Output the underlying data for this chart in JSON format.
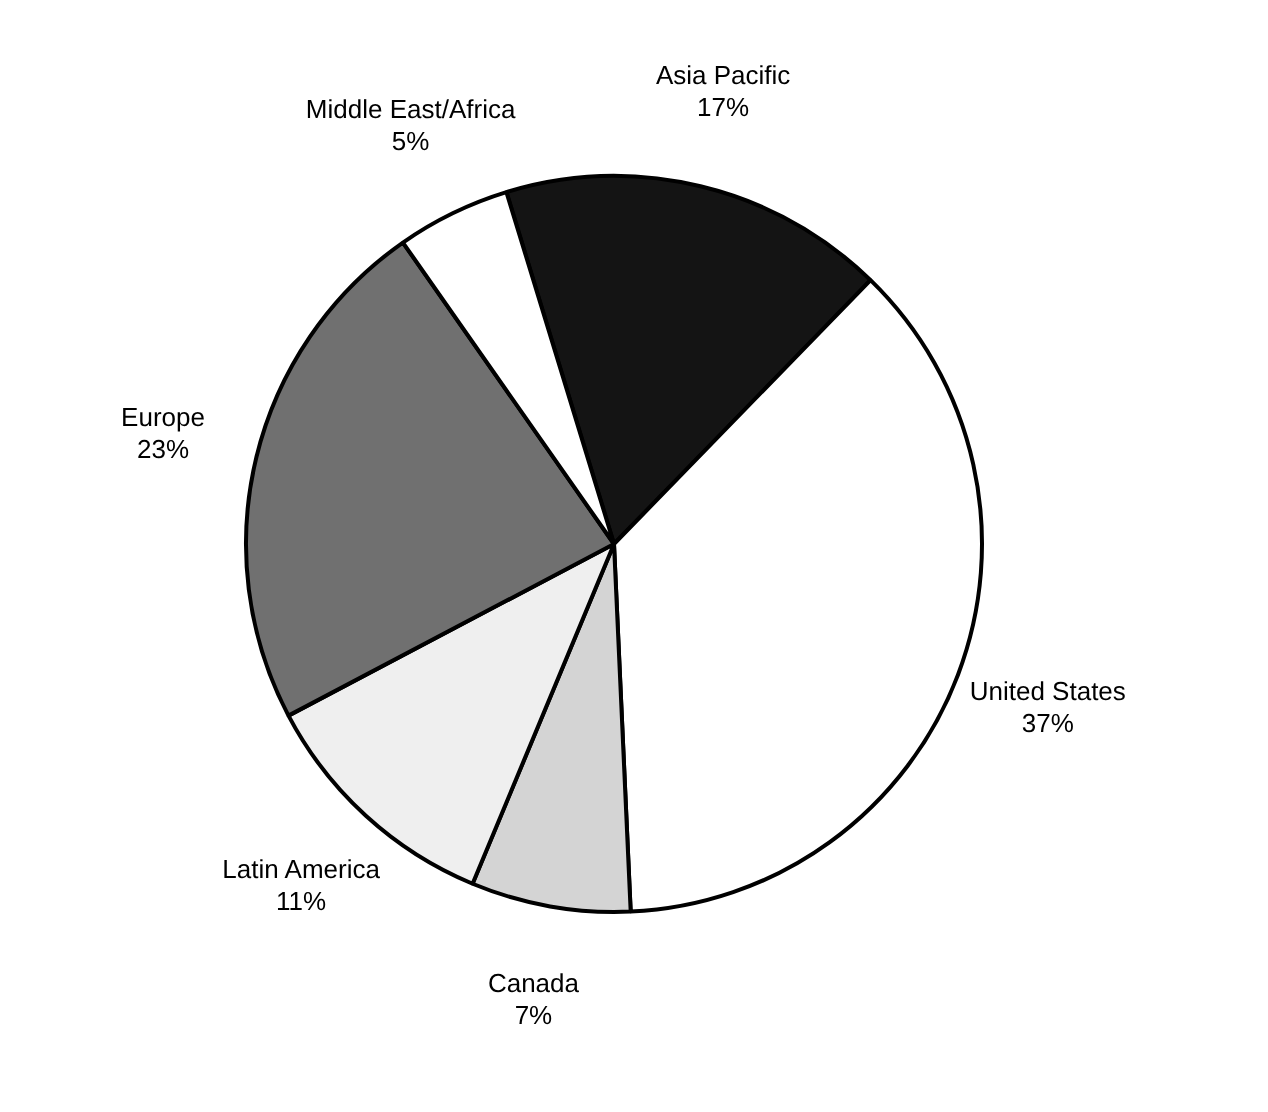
{
  "chart_data": {
    "type": "pie",
    "categories": [
      "Asia Pacific",
      "United States",
      "Canada",
      "Latin America",
      "Europe",
      "Middle East/Africa"
    ],
    "values": [
      17,
      37,
      7,
      11,
      23,
      5
    ],
    "value_labels": [
      "17%",
      "37%",
      "7%",
      "11%",
      "23%",
      "5%"
    ],
    "colors": [
      "#141414",
      "#ffffff",
      "#d4d4d4",
      "#efefef",
      "#707070",
      "#ffffff"
    ],
    "legend": false
  }
}
